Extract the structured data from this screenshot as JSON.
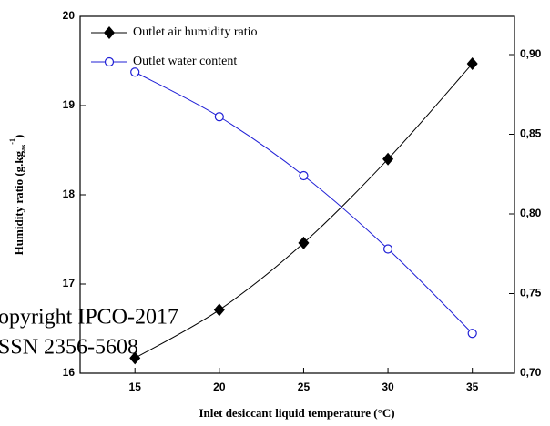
{
  "chart_data": {
    "type": "line",
    "x": [
      15,
      20,
      25,
      30,
      35
    ],
    "xlim": [
      11.75,
      37.5
    ],
    "xticks": [
      15,
      20,
      25,
      30,
      35
    ],
    "ylim": [
      16,
      20
    ],
    "yticks": [
      16,
      17,
      18,
      19,
      20
    ],
    "y2lim": [
      0.7,
      0.924
    ],
    "y2ticks": [
      {
        "value": 0.7,
        "label": "0,70"
      },
      {
        "value": 0.75,
        "label": "0,75"
      },
      {
        "value": 0.8,
        "label": "0,80"
      },
      {
        "value": 0.85,
        "label": "0,85"
      },
      {
        "value": 0.9,
        "label": "0,90"
      }
    ],
    "xlabel": "Inlet desiccant liquid temperature (°C)",
    "ylabel": {
      "text": "Humidity ratio (g.kg",
      "sub": "as",
      "sup": "-1",
      "close": ")"
    },
    "legend": "upper left",
    "series": [
      {
        "name": "Outlet air humidity ratio",
        "color": "#000000",
        "marker": "diamond",
        "values": [
          16.17,
          16.71,
          17.46,
          18.4,
          19.47
        ]
      },
      {
        "name": "Outlet water content",
        "color": "#1f1fd6",
        "marker": "open-circle",
        "axis": "y2",
        "values": [
          0.889,
          0.861,
          0.824,
          0.778,
          0.725
        ]
      }
    ],
    "annotations": [
      "opyright IPCO-2017",
      "SSN 2356-5608"
    ]
  }
}
